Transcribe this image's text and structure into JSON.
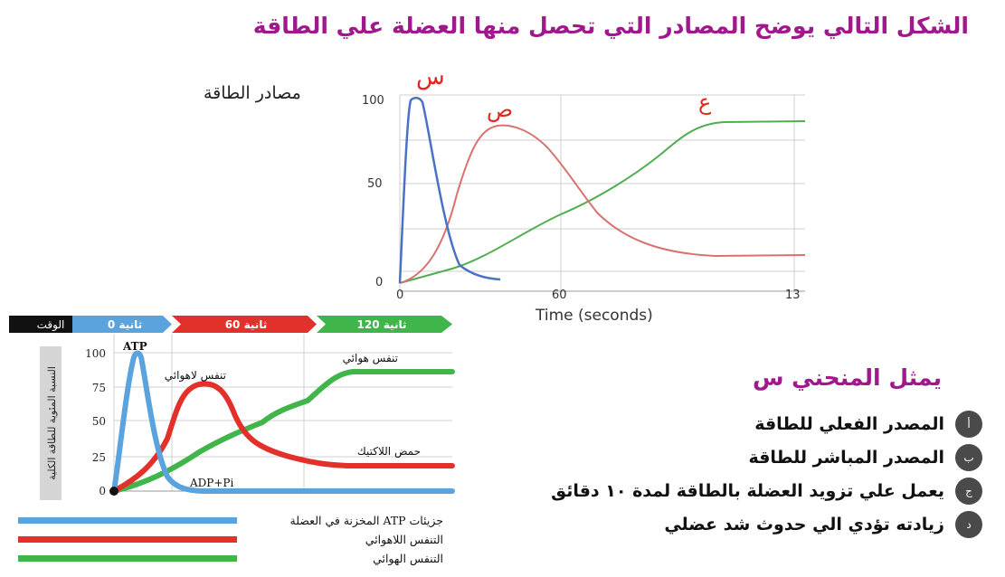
{
  "page": {
    "title": "الشكل التالي يوضح المصادر التي تحصل منها العضلة علي الطاقة",
    "energy_label": "مصادر الطاقة"
  },
  "top_chart": {
    "curve_labels": [
      "س",
      "ص",
      "ع"
    ],
    "y_ticks": [
      "100",
      "50",
      "0"
    ],
    "x_ticks": [
      "0",
      "60",
      "13"
    ],
    "xlabel": "Time (seconds)",
    "colors": {
      "s": "#4a72c4",
      "sad": "#d9726f",
      "ain": "#4fae4f",
      "label": "#e0281c"
    }
  },
  "bottom_chart": {
    "timeline": [
      "الوقت",
      "0 ثانية",
      "60 ثانية",
      "120 ثانية"
    ],
    "ylabel": "النسبة المئوية للطاقة الكلية",
    "y_ticks": [
      "100",
      "75",
      "50",
      "25",
      "0"
    ],
    "curve_labels": {
      "atp": "ATP",
      "anaerobic": "تنفس لاهوائي",
      "aerobic": "تنفس هوائي",
      "lactic": "حمض اللاكتيك",
      "adp": "ADP+Pi"
    },
    "colors": {
      "atp": "#5ba3dc",
      "anaerobic": "#e2312b",
      "aerobic": "#3fb54a"
    }
  },
  "legend": [
    {
      "label": "جزيئات ATP المخزنة في العضلة",
      "color": "#5ba3dc"
    },
    {
      "label": "التنفس اللاهوائي",
      "color": "#e2312b"
    },
    {
      "label": "التنفس الهوائي",
      "color": "#3fb54a"
    }
  ],
  "question": {
    "title": "يمثل المنحني س",
    "options": [
      {
        "badge": "أ",
        "text": "المصدر الفعلي للطاقة"
      },
      {
        "badge": "ب",
        "text": "المصدر المباشر للطاقة"
      },
      {
        "badge": "ج",
        "text": "يعمل علي تزويد العضلة بالطاقة لمدة ١٠ دقائق"
      },
      {
        "badge": "د",
        "text": "زيادته تؤدي الي حدوث شد عضلي"
      }
    ]
  }
}
